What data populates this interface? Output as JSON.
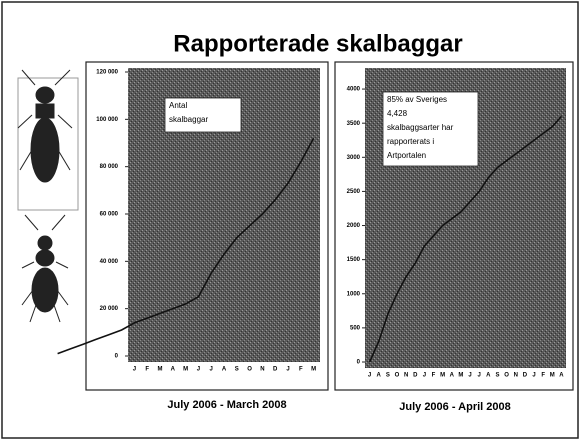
{
  "title": "Rapporterade skalbaggar",
  "chart_data": [
    {
      "type": "line",
      "categories": [
        null,
        null,
        null,
        null,
        null,
        null,
        "J",
        "F",
        "M",
        "A",
        "M",
        "J",
        "J",
        "A",
        "S",
        "O",
        "N",
        "D",
        "J",
        "F",
        "M"
      ],
      "values": [
        1000,
        3000,
        5000,
        7000,
        9000,
        11000,
        14000,
        16000,
        18000,
        20000,
        22000,
        25000,
        35000,
        43000,
        50000,
        55000,
        60000,
        66000,
        73000,
        82000,
        92000
      ],
      "color": "#111111",
      "ylim": [
        0,
        120000
      ],
      "yticks": [
        0,
        {
          "value": 20000,
          "label": "20 000"
        },
        {
          "value": 40000,
          "label": "40 000"
        },
        {
          "value": 60000,
          "label": "60 000"
        },
        {
          "value": 80000,
          "label": "80 000"
        },
        {
          "value": 100000,
          "label": "100 000"
        },
        {
          "value": 120000,
          "label": "120 000"
        }
      ],
      "annotation": [
        "Antal",
        "skalbaggar"
      ],
      "caption": "July 2006 - March 2008"
    },
    {
      "type": "line",
      "categories": [
        "J",
        "A",
        "S",
        "O",
        "N",
        "D",
        "J",
        "F",
        "M",
        "A",
        "M",
        "J",
        "J",
        "A",
        "S",
        "O",
        "N",
        "D",
        "J",
        "F",
        "M",
        "A"
      ],
      "values": [
        0,
        300,
        700,
        1000,
        1250,
        1450,
        1700,
        1850,
        2000,
        2100,
        2200,
        2350,
        2500,
        2700,
        2850,
        2950,
        3050,
        3150,
        3250,
        3350,
        3450,
        3600
      ],
      "color": "#111111",
      "ylim": [
        0,
        4250
      ],
      "yticks": [
        0,
        500,
        1000,
        1500,
        2000,
        2500,
        3000,
        3500,
        4000
      ],
      "annotation": [
        "85% av Sveriges",
        "4,428",
        "skalbaggsarter har",
        "rapporterats i",
        "Artportalen"
      ],
      "caption": "July 2006 - April 2008"
    }
  ]
}
